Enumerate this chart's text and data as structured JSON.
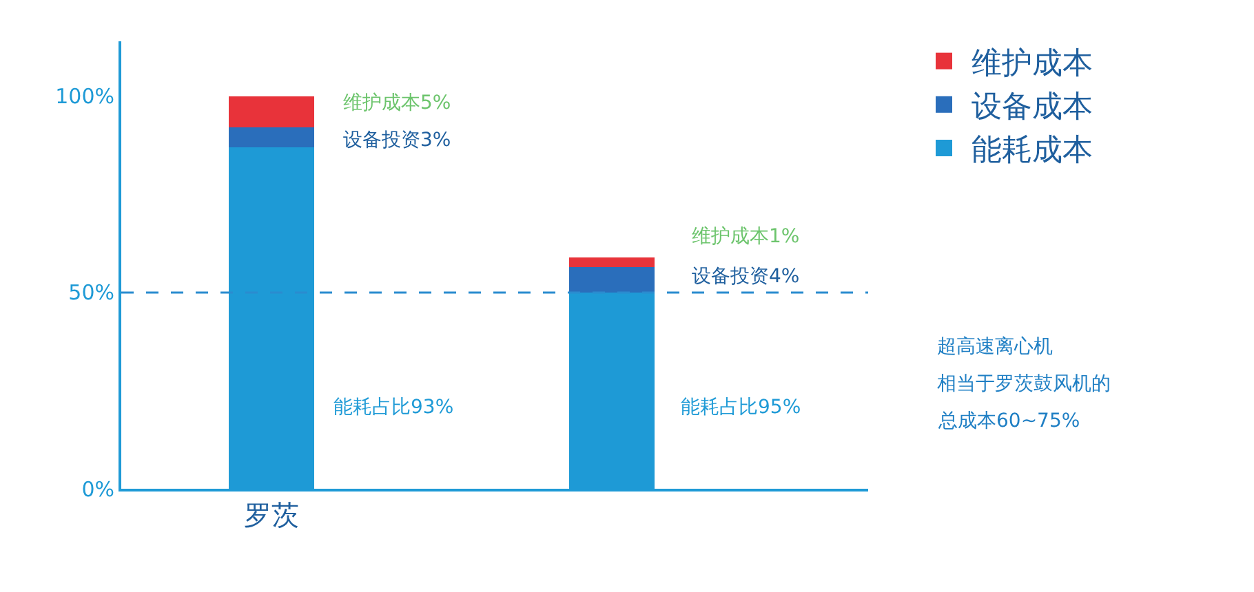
{
  "chart_data": {
    "type": "bar",
    "stacked": true,
    "categories": [
      "罗茨",
      null
    ],
    "series": [
      {
        "name": "能耗成本",
        "color": "#1e9ad6",
        "values": [
          87,
          50
        ]
      },
      {
        "name": "设备成本",
        "color": "#2a6ebb",
        "values": [
          5,
          6.5
        ]
      },
      {
        "name": "维护成本",
        "color": "#e8333a",
        "values": [
          8,
          2.5
        ]
      }
    ],
    "ylim": [
      0,
      114
    ],
    "yticks": [
      {
        "value": 0,
        "label": "0%"
      },
      {
        "value": 50,
        "label": "50%"
      },
      {
        "value": 100,
        "label": "100%"
      }
    ],
    "ref_lines": [
      {
        "axis": "y",
        "value": 50,
        "label": null,
        "color": "#2a8ccf",
        "line_style": "dashed"
      }
    ],
    "annotations": [
      "维护成本5%",
      "设备投资3%",
      "能耗占比93%",
      "维护成本1%",
      "设备投资4%",
      "能耗占比95%",
      "超高速离心机",
      "相当于罗茨鼓风机的",
      "总成本60~75%"
    ],
    "legend": "top right"
  }
}
